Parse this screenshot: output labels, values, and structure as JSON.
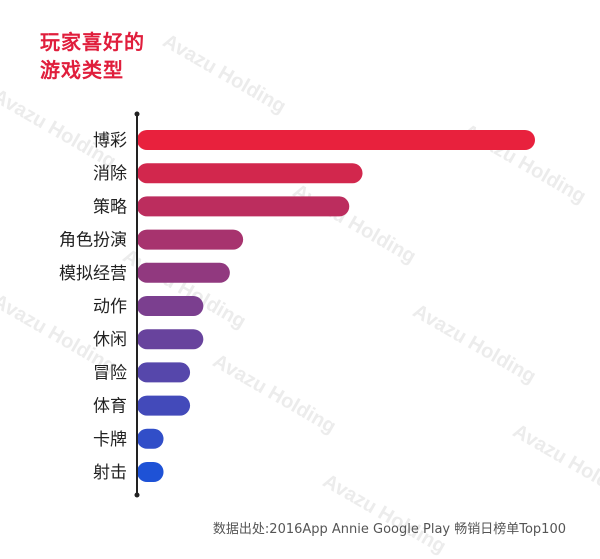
{
  "title_lines": [
    "玩家喜好的",
    "游戏类型"
  ],
  "watermark": "Avazu Holding",
  "source": "数据出处:2016App Annie Google Play 畅销日榜单Top100",
  "colors": {
    "title": "#e01e3c",
    "bar_start": "#e8213d",
    "bar_mid": "#7b3f8f",
    "bar_end": "#1e52d6",
    "axis": "#222222"
  },
  "chart_data": {
    "type": "bar",
    "orientation": "horizontal",
    "categories": [
      "博彩",
      "消除",
      "策略",
      "角色扮演",
      "模拟经营",
      "动作",
      "休闲",
      "冒险",
      "体育",
      "卡牌",
      "射击"
    ],
    "values": [
      30,
      17,
      16,
      8,
      7,
      5,
      5,
      4,
      4,
      2,
      2
    ],
    "title": "玩家喜好的游戏类型",
    "xlabel": "",
    "ylabel": "",
    "grid": false
  }
}
